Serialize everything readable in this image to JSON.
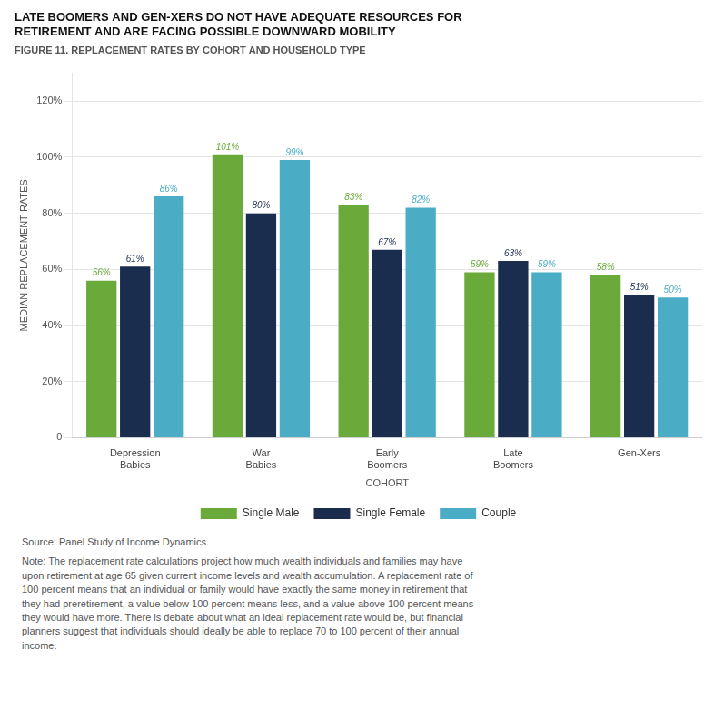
{
  "chart_data": {
    "type": "bar",
    "title": "LATE BOOMERS AND GEN-XERS DO NOT HAVE ADEQUATE RESOURCES FOR\nRETIREMENT AND ARE FACING POSSIBLE DOWNWARD MOBILITY",
    "subtitle": "FIGURE 11. REPLACEMENT RATES BY COHORT AND HOUSEHOLD TYPE",
    "categories": [
      "Depression\nBabies",
      "War\nBabies",
      "Early\nBoomers",
      "Late\nBoomers",
      "Gen-Xers"
    ],
    "x_label": "COHORT",
    "y_label": "MEDIAN REPLACEMENT RATES",
    "series": [
      {
        "name": "Single Male",
        "color": "#6aaa3a",
        "values": [
          56,
          101,
          83,
          59,
          58
        ],
        "value_labels": [
          "56%",
          "101%",
          "83%",
          "59%",
          "58%"
        ]
      },
      {
        "name": "Single Female",
        "color": "#1a2d4e",
        "values": [
          61,
          80,
          67,
          63,
          51
        ],
        "value_labels": [
          "61%",
          "80%",
          "67%",
          "63%",
          "51%"
        ]
      },
      {
        "name": "Couple",
        "color": "#4bacc6",
        "values": [
          86,
          99,
          82,
          59,
          50
        ],
        "value_labels": [
          "86%",
          "99%",
          "82%",
          "59%",
          "50%"
        ]
      }
    ],
    "ylim": [
      0,
      130
    ],
    "yticks": [
      0,
      {
        "value": 20,
        "label": "20%"
      },
      {
        "value": 40,
        "label": "40%"
      },
      {
        "value": 60,
        "label": "60%"
      },
      {
        "value": 80,
        "label": "80%"
      },
      {
        "value": 100,
        "label": "100%"
      },
      {
        "value": 120,
        "label": "120%"
      }
    ],
    "grid": true,
    "legend": "bottom",
    "data_labels": true,
    "annotations": [
      "Source: Panel Study of Income Dynamics.",
      "Note: The replacement rate calculations project how much wealth individuals and families may have\nupon retirement at age 65 given current income levels and wealth accumulation. A replacement rate of\n100 percent means that an individual or family would have exactly the same money in retirement that\nthey had preretirement, a value below 100 percent means less, and a value above 100 percent means\nthey would have more. There is debate about what an ideal replacement rate would be, but financial\nplanners suggest that individuals should ideally be able to replace 70 to 100 percent of their annual\nincome."
    ]
  }
}
